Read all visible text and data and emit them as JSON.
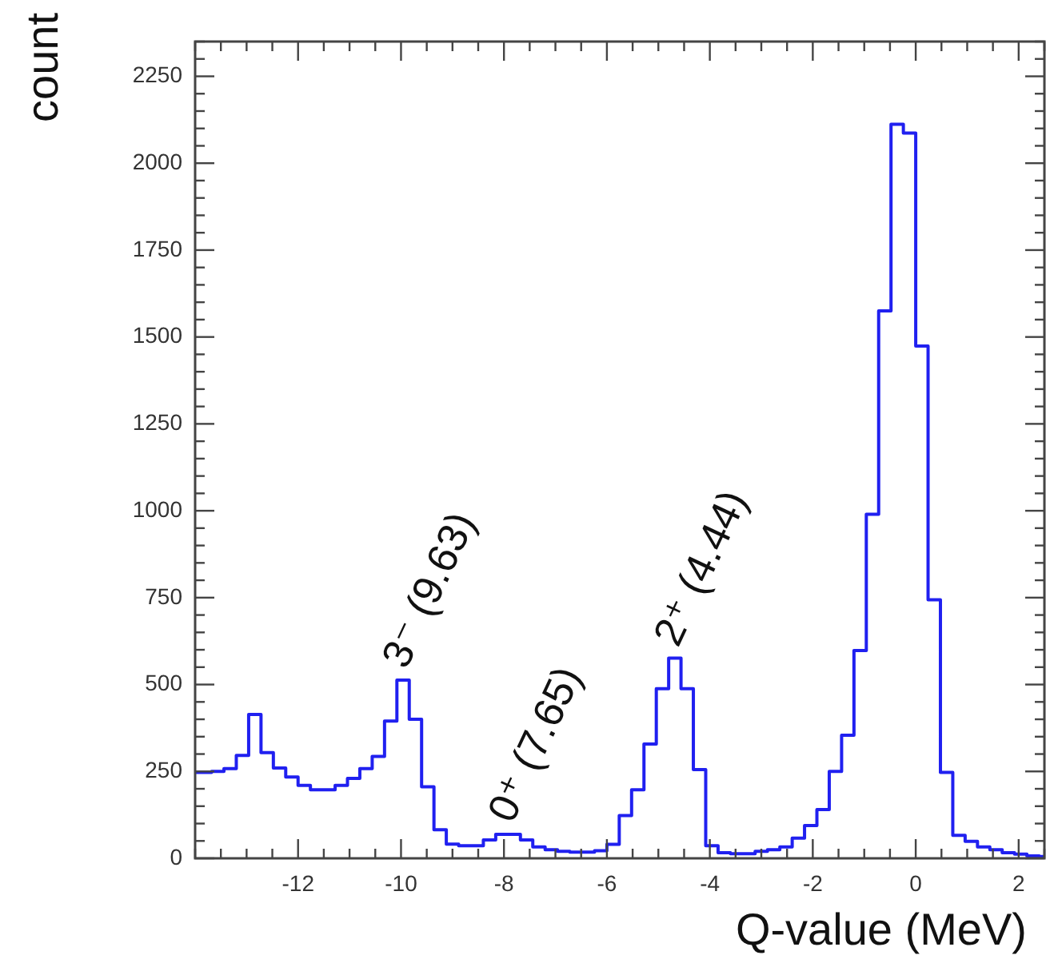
{
  "chart_data": {
    "type": "histogram",
    "xlabel": "Q-value (MeV)",
    "ylabel": "count",
    "bins": [
      -14,
      -13.92,
      -13.68,
      -13.44,
      -13.2,
      -12.96,
      -12.72,
      -12.48,
      -12.24,
      -12,
      -11.76,
      -11.52,
      -11.28,
      -11.04,
      -10.8,
      -10.56,
      -10.32,
      -10.08,
      -9.84,
      -9.6,
      -9.36,
      -9.12,
      -8.88,
      -8.64,
      -8.4,
      -8.16,
      -7.92,
      -7.68,
      -7.44,
      -7.2,
      -6.96,
      -6.72,
      -6.48,
      -6.24,
      -6,
      -5.76,
      -5.52,
      -5.28,
      -5.04,
      -4.8,
      -4.56,
      -4.32,
      -4.08,
      -3.84,
      -3.6,
      -3.36,
      -3.12,
      -2.88,
      -2.64,
      -2.4,
      -2.16,
      -1.92,
      -1.68,
      -1.44,
      -1.2,
      -0.96,
      -0.72,
      -0.48,
      -0.24,
      0,
      0.24,
      0.48,
      0.72,
      0.96,
      1.2,
      1.44,
      1.68,
      1.92,
      2.16,
      2.4,
      2.5
    ],
    "values": [
      247,
      247,
      250,
      258,
      296,
      414,
      304,
      260,
      234,
      210,
      197,
      197,
      210,
      230,
      258,
      293,
      395,
      513,
      400,
      206,
      82,
      41,
      36,
      36,
      53,
      69,
      69,
      53,
      33,
      25,
      20,
      18,
      18,
      22,
      40,
      123,
      197,
      329,
      488,
      576,
      488,
      255,
      36,
      16,
      13,
      13,
      20,
      25,
      33,
      58,
      94,
      140,
      250,
      354,
      598,
      990,
      1575,
      2112,
      2087,
      1474,
      744,
      247,
      66,
      49,
      33,
      25,
      16,
      12,
      7,
      5
    ],
    "color": "#2020f0",
    "xlim": [
      -14,
      2.5
    ],
    "xticks": [
      -12,
      -10,
      -8,
      -6,
      -4,
      -2,
      0,
      2
    ],
    "ylim": [
      0,
      2350
    ],
    "yticks": [
      0,
      250,
      500,
      750,
      1000,
      1250,
      1500,
      1750,
      2000,
      2250
    ],
    "grid": false,
    "annotations": [
      {
        "text": "3⁻ (9.63)",
        "x": -9.96,
        "y": 513
      },
      {
        "text": "0⁺ (7.65)",
        "x": -7.9,
        "y": 69
      },
      {
        "text": "2⁺ (4.44)",
        "x": -4.68,
        "y": 576
      }
    ]
  }
}
